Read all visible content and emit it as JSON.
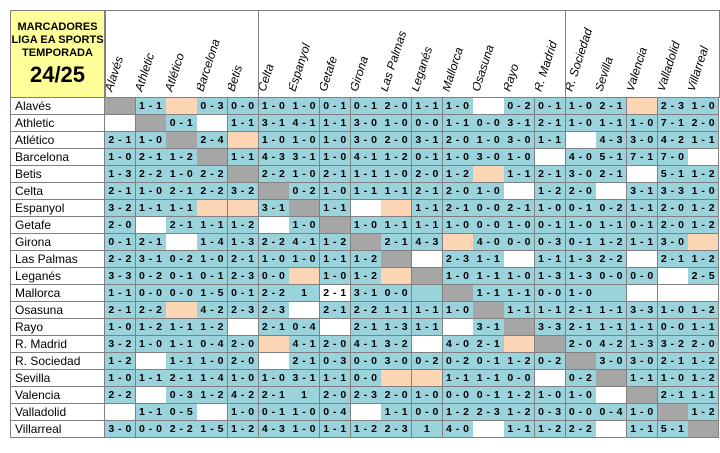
{
  "title": {
    "line1": "MARCADORES",
    "line2": "LIGA EA SPORTS",
    "line3": "TEMPORADA",
    "season": "24/25"
  },
  "colors": {
    "blue": "#9bd3dd",
    "white": "#ffffff",
    "peach": "#fcd5b5",
    "grey": "#a6a6a6",
    "title_bg": "#ffff99"
  },
  "teams": [
    "Alavés",
    "Athletic",
    "Atlético",
    "Barcelona",
    "Betis",
    "Celta",
    "Espanyol",
    "Getafe",
    "Girona",
    "Las Palmas",
    "Leganés",
    "Mallorca",
    "Osasuna",
    "Rayo",
    "R. Madrid",
    "R. Sociedad",
    "Sevilla",
    "Valencia",
    "Valladolid",
    "Villarreal"
  ],
  "rows": [
    {
      "scores": [
        "",
        "1 - 1",
        "",
        "0 - 3",
        "0 - 0",
        "1 - 0",
        "1 - 0",
        "0 - 1",
        "0 - 1",
        "2 - 0",
        "1 - 1",
        "1 - 0",
        "",
        "0 - 2",
        "0 - 1",
        "1 - 0",
        "2 - 1",
        "",
        "2 - 3",
        "1 - 0"
      ],
      "colors": [
        "g",
        "b",
        "p",
        "b",
        "b",
        "b",
        "b",
        "b",
        "b",
        "b",
        "b",
        "b",
        "w",
        "b",
        "b",
        "b",
        "b",
        "p",
        "b",
        "b"
      ]
    },
    {
      "scores": [
        "",
        "",
        "0 - 1",
        "",
        "1 - 1",
        "3 - 1",
        "4 - 1",
        "1 - 1",
        "3 - 0",
        "1 - 0",
        "0 - 0",
        "1 - 1",
        "0 - 0",
        "3 - 1",
        "2 - 1",
        "1 - 0",
        "1 - 1",
        "1 - 0",
        "7 - 1",
        "2 - 0"
      ],
      "colors": [
        "w",
        "g",
        "b",
        "w",
        "b",
        "b",
        "b",
        "b",
        "b",
        "b",
        "b",
        "b",
        "b",
        "b",
        "b",
        "b",
        "b",
        "b",
        "b",
        "b"
      ]
    },
    {
      "scores": [
        "2 - 1",
        "1 - 0",
        "",
        "2 - 4",
        "",
        "1 - 0",
        "1 - 0",
        "1 - 0",
        "3 - 0",
        "2 - 0",
        "3 - 1",
        "2 - 0",
        "1 - 0",
        "3 - 0",
        "1 - 1",
        "",
        "4 - 3",
        "3 - 0",
        "4 - 2",
        "1 - 1"
      ],
      "colors": [
        "b",
        "b",
        "g",
        "b",
        "p",
        "b",
        "b",
        "b",
        "b",
        "b",
        "b",
        "b",
        "b",
        "b",
        "b",
        "w",
        "b",
        "b",
        "b",
        "b"
      ]
    },
    {
      "scores": [
        "1 - 0",
        "2 - 1",
        "1 - 2",
        "",
        "1 - 1",
        "4 - 3",
        "3 - 1",
        "1 - 0",
        "4 - 1",
        "1 - 2",
        "0 - 1",
        "1 - 0",
        "3 - 0",
        "1 - 0",
        "",
        "4 - 0",
        "5 - 1",
        "7 - 1",
        "7 - 0",
        ""
      ],
      "colors": [
        "b",
        "b",
        "b",
        "g",
        "b",
        "b",
        "b",
        "b",
        "b",
        "b",
        "b",
        "b",
        "b",
        "b",
        "w",
        "b",
        "b",
        "b",
        "b",
        "w"
      ]
    },
    {
      "scores": [
        "1 - 3",
        "2 - 2",
        "1 - 0",
        "2 - 2",
        "",
        "2 - 2",
        "1 - 0",
        "2 - 1",
        "1 - 1",
        "1 - 0",
        "2 - 0",
        "1 - 2",
        "",
        "1 - 1",
        "2 - 1",
        "3 - 0",
        "2 - 1",
        "",
        "5 - 1",
        "1 - 2"
      ],
      "colors": [
        "b",
        "b",
        "b",
        "b",
        "g",
        "b",
        "b",
        "b",
        "b",
        "b",
        "b",
        "b",
        "p",
        "b",
        "b",
        "b",
        "b",
        "w",
        "b",
        "b"
      ]
    },
    {
      "scores": [
        "2 - 1",
        "1 - 0",
        "2 - 1",
        "2 - 2",
        "3 - 2",
        "",
        "0 - 2",
        "1 - 0",
        "1 - 1",
        "1 - 1",
        "2 - 1",
        "2 - 0",
        "1 - 0",
        "",
        "1 - 2",
        "2 - 0",
        "",
        "3 - 1",
        "3 - 3",
        "1 - 0"
      ],
      "colors": [
        "b",
        "b",
        "b",
        "b",
        "b",
        "g",
        "b",
        "b",
        "b",
        "b",
        "b",
        "b",
        "b",
        "w",
        "b",
        "b",
        "w",
        "b",
        "b",
        "b"
      ]
    },
    {
      "scores": [
        "3 - 2",
        "1 - 1",
        "1 - 1",
        "",
        "",
        "3 - 1",
        "",
        "1 - 1",
        "",
        "",
        "1 - 1",
        "2 - 1",
        "0 - 0",
        "2 - 1",
        "1 - 0",
        "0 - 1",
        "0 - 2",
        "1 - 1",
        "2 - 0",
        "1 - 2"
      ],
      "colors": [
        "b",
        "b",
        "b",
        "p",
        "p",
        "b",
        "g",
        "b",
        "w",
        "p",
        "b",
        "b",
        "b",
        "b",
        "b",
        "b",
        "b",
        "b",
        "b",
        "b"
      ]
    },
    {
      "scores": [
        "2 - 0",
        "",
        "2 - 1",
        "1 - 1",
        "1 - 2",
        "",
        "1 - 0",
        "",
        "1 - 0",
        "1 - 1",
        "1 - 1",
        "1 - 0",
        "0 - 0",
        "1 - 0",
        "0 - 1",
        "1 - 0",
        "1 - 1",
        "0 - 1",
        "2 - 0",
        "1 - 2"
      ],
      "colors": [
        "b",
        "w",
        "b",
        "b",
        "b",
        "w",
        "b",
        "g",
        "b",
        "b",
        "b",
        "b",
        "b",
        "b",
        "b",
        "b",
        "b",
        "b",
        "b",
        "b"
      ]
    },
    {
      "scores": [
        "0 - 1",
        "2 - 1",
        "",
        "1 - 4",
        "1 - 3",
        "2 - 2",
        "4 - 1",
        "1 - 2",
        "",
        "2 - 1",
        "4 - 3",
        "",
        "4 - 0",
        "0 - 0",
        "0 - 3",
        "0 - 1",
        "1 - 2",
        "1 - 1",
        "3 - 0",
        ""
      ],
      "colors": [
        "b",
        "b",
        "w",
        "b",
        "b",
        "b",
        "b",
        "b",
        "g",
        "b",
        "b",
        "p",
        "b",
        "b",
        "b",
        "b",
        "b",
        "b",
        "b",
        "p"
      ]
    },
    {
      "scores": [
        "2 - 2",
        "3 - 1",
        "0 - 2",
        "1 - 0",
        "2 - 1",
        "1 - 0",
        "1 - 0",
        "1 - 1",
        "1 - 2",
        "",
        "",
        "2 - 3",
        "1 - 1",
        "",
        "1 - 1",
        "1 - 3",
        "2 - 2",
        "",
        "2 - 1",
        "1 - 2"
      ],
      "colors": [
        "b",
        "b",
        "b",
        "b",
        "b",
        "b",
        "b",
        "b",
        "b",
        "g",
        "w",
        "b",
        "b",
        "w",
        "b",
        "b",
        "b",
        "w",
        "b",
        "b"
      ]
    },
    {
      "scores": [
        "3 - 3",
        "0 - 2",
        "0 - 1",
        "0 - 1",
        "2 - 3",
        "0 - 0",
        "",
        "1 - 0",
        "1 - 2",
        "",
        "",
        "1 - 0",
        "1 - 1",
        "1 - 0",
        "1 - 3",
        "1 - 3",
        "0 - 0",
        "0 - 0",
        "",
        "2 - 5"
      ],
      "colors": [
        "b",
        "b",
        "b",
        "b",
        "b",
        "b",
        "p",
        "b",
        "b",
        "p",
        "g",
        "b",
        "b",
        "b",
        "b",
        "b",
        "b",
        "b",
        "w",
        "b"
      ]
    },
    {
      "scores": [
        "1 - 1",
        "0 - 0",
        "0 - 0",
        "1 - 5",
        "0 - 1",
        "2 - 2",
        "1",
        "2 - 1",
        "3 - 1",
        "0 - 0",
        "",
        "",
        "1 - 1",
        "1 - 1",
        "0 - 0",
        "1 - 0",
        "",
        "",
        "",
        ""
      ],
      "colors": [
        "b",
        "b",
        "b",
        "b",
        "b",
        "b",
        "b",
        "w",
        "b",
        "b",
        "b",
        "g",
        "b",
        "b",
        "b",
        "b",
        "b",
        "w",
        "w",
        "w"
      ]
    },
    {
      "scores": [
        "2 - 1",
        "2 - 2",
        "",
        "4 - 2",
        "2 - 3",
        "2 - 3",
        "",
        "2 - 1",
        "2 - 2",
        "1 - 1",
        "1 - 1",
        "1 - 0",
        "",
        "1 - 1",
        "1 - 1",
        "2 - 1",
        "1 - 1",
        "3 - 3",
        "1 - 0",
        "1 - 2"
      ],
      "colors": [
        "b",
        "b",
        "p",
        "b",
        "b",
        "b",
        "w",
        "b",
        "b",
        "b",
        "b",
        "b",
        "g",
        "b",
        "b",
        "b",
        "b",
        "b",
        "b",
        "b"
      ]
    },
    {
      "scores": [
        "1 - 0",
        "1 - 2",
        "1 - 1",
        "1 - 2",
        "",
        "2 - 1",
        "0 - 4",
        "",
        "2 - 1",
        "1 - 3",
        "1 - 1",
        "",
        "3 - 1",
        "",
        "3 - 3",
        "2 - 1",
        "1 - 1",
        "1 - 1",
        "0 - 0",
        "1 - 1"
      ],
      "colors": [
        "b",
        "b",
        "b",
        "b",
        "w",
        "b",
        "b",
        "w",
        "b",
        "b",
        "b",
        "w",
        "b",
        "g",
        "b",
        "b",
        "b",
        "b",
        "b",
        "b"
      ]
    },
    {
      "scores": [
        "3 - 2",
        "1 - 0",
        "1 - 1",
        "0 - 4",
        "2 - 0",
        "",
        "4 - 1",
        "2 - 0",
        "4 - 1",
        "3 - 2",
        "",
        "4 - 0",
        "2 - 1",
        "",
        "",
        "2 - 0",
        "4 - 2",
        "1 - 3",
        "3 - 2",
        "2 - 0"
      ],
      "colors": [
        "b",
        "b",
        "b",
        "b",
        "b",
        "p",
        "b",
        "b",
        "b",
        "b",
        "w",
        "b",
        "b",
        "p",
        "g",
        "b",
        "b",
        "b",
        "b",
        "b"
      ]
    },
    {
      "scores": [
        "1 - 2",
        "",
        "1 - 1",
        "1 - 0",
        "2 - 0",
        "",
        "2 - 1",
        "0 - 3",
        "0 - 0",
        "3 - 0",
        "0 - 2",
        "0 - 2",
        "0 - 1",
        "1 - 2",
        "0 - 2",
        "",
        "3 - 0",
        "3 - 0",
        "2 - 1",
        "1 - 2"
      ],
      "colors": [
        "b",
        "w",
        "b",
        "b",
        "b",
        "w",
        "b",
        "b",
        "b",
        "b",
        "b",
        "b",
        "b",
        "b",
        "b",
        "g",
        "b",
        "b",
        "b",
        "b"
      ]
    },
    {
      "scores": [
        "1 - 0",
        "1 - 1",
        "2 - 1",
        "1 - 4",
        "1 - 0",
        "1 - 0",
        "3 - 1",
        "1 - 1",
        "0 - 0",
        "",
        "",
        "1 - 1",
        "1 - 1",
        "0 - 0",
        "",
        "0 - 2",
        "",
        "1 - 1",
        "1 - 0",
        "1 - 2"
      ],
      "colors": [
        "b",
        "b",
        "b",
        "b",
        "b",
        "b",
        "b",
        "b",
        "b",
        "p",
        "p",
        "b",
        "b",
        "b",
        "w",
        "b",
        "g",
        "b",
        "b",
        "b"
      ]
    },
    {
      "scores": [
        "2 - 2",
        "",
        "0 - 3",
        "1 - 2",
        "4 - 2",
        "2 - 1",
        "1",
        "2 - 0",
        "2 - 3",
        "2 - 0",
        "1 - 0",
        "0 - 0",
        "0 - 1",
        "1 - 2",
        "1 - 0",
        "1 - 0",
        "",
        "",
        "2 - 1",
        "1 - 1"
      ],
      "colors": [
        "b",
        "w",
        "b",
        "b",
        "b",
        "b",
        "b",
        "b",
        "b",
        "b",
        "b",
        "b",
        "b",
        "b",
        "b",
        "b",
        "w",
        "g",
        "b",
        "b"
      ]
    },
    {
      "scores": [
        "",
        "1 - 1",
        "0 - 5",
        "",
        "1 - 0",
        "0 - 1",
        "1 - 0",
        "0 - 4",
        "",
        "1 - 1",
        "0 - 0",
        "1 - 2",
        "2 - 3",
        "1 - 2",
        "0 - 3",
        "0 - 0",
        "0 - 4",
        "1 - 0",
        "",
        "1 - 2"
      ],
      "colors": [
        "w",
        "b",
        "b",
        "w",
        "b",
        "b",
        "b",
        "b",
        "w",
        "b",
        "b",
        "b",
        "b",
        "b",
        "b",
        "b",
        "b",
        "b",
        "g",
        "b"
      ]
    },
    {
      "scores": [
        "3 - 0",
        "0 - 0",
        "2 - 2",
        "1 - 5",
        "1 - 2",
        "4 - 3",
        "1 - 0",
        "1 - 1",
        "1 - 2",
        "2 - 3",
        "1",
        "4 - 0",
        "",
        "1 - 1",
        "1 - 2",
        "2 - 2",
        "",
        "1 - 1",
        "5 - 1",
        ""
      ],
      "colors": [
        "b",
        "b",
        "b",
        "b",
        "b",
        "b",
        "b",
        "b",
        "b",
        "b",
        "b",
        "b",
        "w",
        "b",
        "b",
        "b",
        "w",
        "b",
        "b",
        "g"
      ]
    }
  ]
}
